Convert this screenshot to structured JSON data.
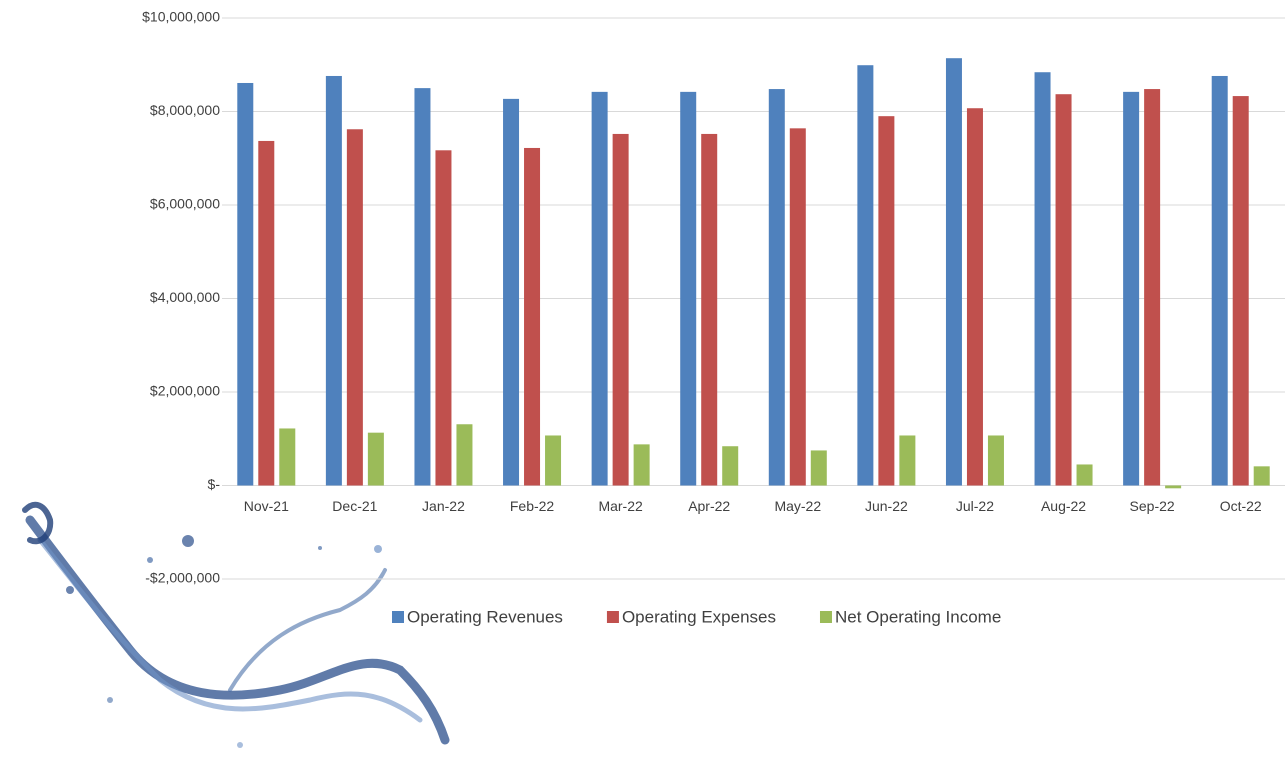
{
  "chart_data": {
    "type": "bar",
    "categories": [
      "Nov-21",
      "Dec-21",
      "Jan-22",
      "Feb-22",
      "Mar-22",
      "Apr-22",
      "May-22",
      "Jun-22",
      "Jul-22",
      "Aug-22",
      "Sep-22",
      "Oct-22"
    ],
    "series": [
      {
        "name": "Operating Revenues",
        "color": "#4f81bd",
        "values": [
          8610000,
          8760000,
          8500000,
          8270000,
          8420000,
          8420000,
          8480000,
          8990000,
          9140000,
          8840000,
          8420000,
          8760000
        ]
      },
      {
        "name": "Operating Expenses",
        "color": "#c0504d",
        "values": [
          7370000,
          7620000,
          7170000,
          7220000,
          7520000,
          7520000,
          7640000,
          7900000,
          8070000,
          8370000,
          8480000,
          8330000
        ]
      },
      {
        "name": "Net Operating Income",
        "color": "#9bbb59",
        "values": [
          1220000,
          1130000,
          1310000,
          1070000,
          880000,
          840000,
          750000,
          1070000,
          1070000,
          450000,
          -60000,
          410000
        ]
      }
    ],
    "ylim": [
      -2000000,
      10000000
    ],
    "yticks": [
      {
        "value": -2000000,
        "label": "-$2,000,000"
      },
      {
        "value": 0,
        "label": "$-"
      },
      {
        "value": 2000000,
        "label": "$2,000,000"
      },
      {
        "value": 4000000,
        "label": "$4,000,000"
      },
      {
        "value": 6000000,
        "label": "$6,000,000"
      },
      {
        "value": 8000000,
        "label": "$8,000,000"
      },
      {
        "value": 10000000,
        "label": "$10,000,000"
      }
    ],
    "grid": true,
    "legend": "bottom"
  }
}
